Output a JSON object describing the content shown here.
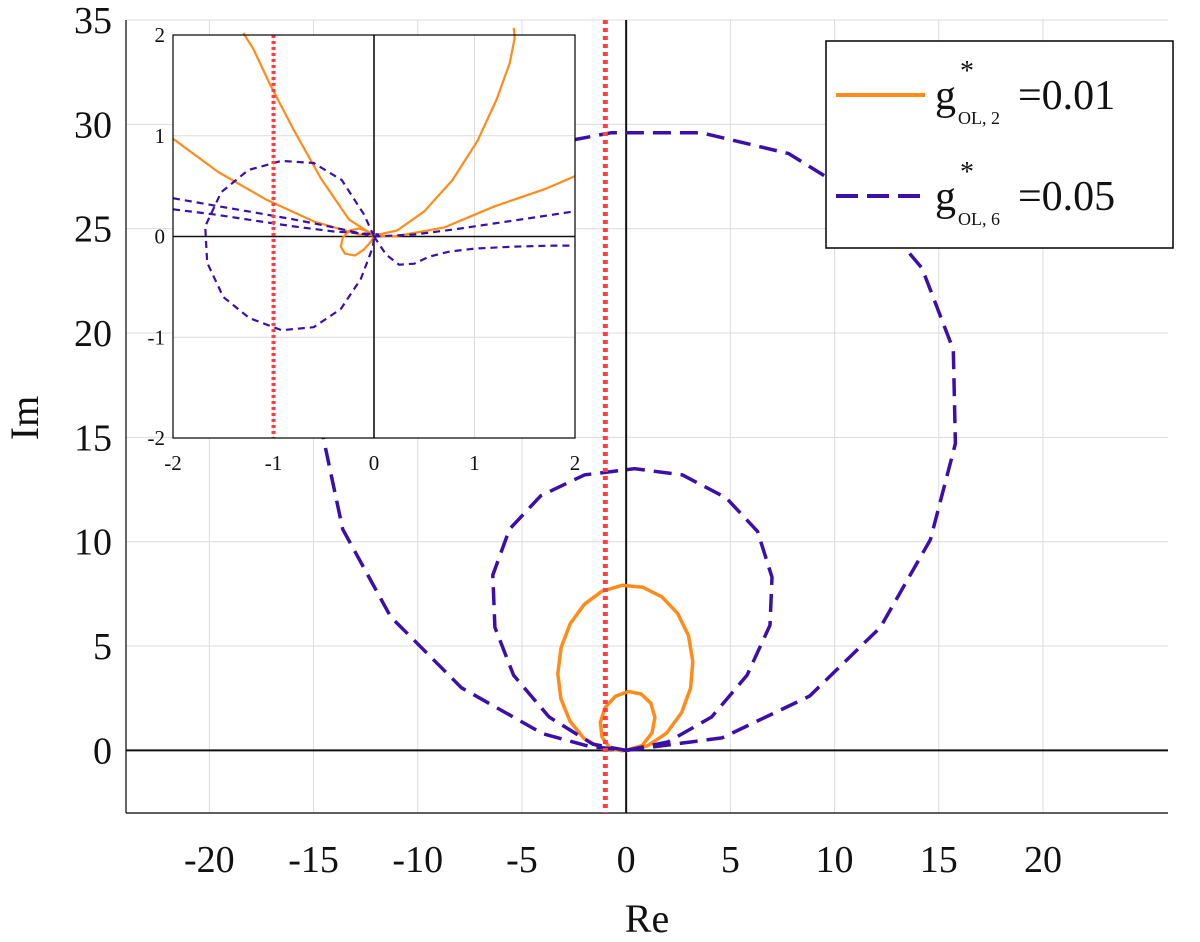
{
  "chart_data": [
    {
      "type": "line",
      "title": "",
      "xlabel": "Re",
      "ylabel": "Im",
      "xlim": [
        -24,
        26
      ],
      "ylim": [
        -3,
        35
      ],
      "xticks": [
        -20,
        -15,
        -10,
        -5,
        0,
        5,
        10,
        15,
        20
      ],
      "yticks": [
        0,
        5,
        10,
        15,
        20,
        25,
        30,
        35
      ],
      "xtick_labels": [
        "-20",
        "-15",
        "-10",
        "-5",
        "0",
        "5",
        "10",
        "15",
        "20"
      ],
      "ytick_labels": [
        "0",
        "5",
        "10",
        "15",
        "20",
        "25",
        "30",
        "35"
      ],
      "grid": true,
      "reference_line": {
        "x": -1,
        "style": "dotted",
        "color": "#ff4040"
      },
      "legend": {
        "position": "top-right",
        "entries": [
          {
            "base": "g",
            "superscript": "*",
            "subscript": "OL, 2",
            "value_text": "=0.01"
          },
          {
            "base": "g",
            "superscript": "*",
            "subscript": "OL, 6",
            "value_text": "=0.05"
          }
        ]
      },
      "series": [
        {
          "style": "solid",
          "color": "#ff8c1a",
          "curves": [
            {
              "x": [
                0,
                1.03,
                1.95,
                2.66,
                3.09,
                3.2,
                2.99,
                2.47,
                1.71,
                0.79,
                -0.19,
                -1.16,
                -2.01,
                -2.69,
                -3.12,
                -3.28,
                -3.13,
                -2.7,
                -2.04,
                -1.19,
                -0.22,
                0
              ],
              "y": [
                0,
                0.22,
                0.84,
                1.81,
                2.99,
                4.26,
                5.5,
                6.57,
                7.36,
                7.82,
                7.91,
                7.63,
                7.0,
                6.06,
                4.93,
                3.68,
                2.47,
                1.41,
                0.59,
                0.1,
                0,
                0
              ]
            },
            {
              "x": [
                0,
                0.77,
                1.24,
                1.38,
                1.18,
                0.72,
                0.11,
                -0.52,
                -1.01,
                -1.24,
                -1.16,
                -0.8,
                -0.22,
                0
              ],
              "y": [
                0,
                0.24,
                0.84,
                1.58,
                2.26,
                2.7,
                2.82,
                2.59,
                2.05,
                1.34,
                0.64,
                0.15,
                -0.02,
                0
              ]
            }
          ]
        },
        {
          "style": "dashed",
          "color": "#3a10a8",
          "curves": [
            {
              "x": [
                0,
                4.6,
                8.8,
                12.2,
                14.6,
                15.8,
                15.7,
                14.2,
                11.5,
                7.8,
                3.6,
                -0.7,
                -5,
                -9,
                -12.2,
                -14.1,
                -14.6,
                -13.6,
                -11.3,
                -7.9,
                -4,
                -1.8,
                0
              ],
              "y": [
                0,
                0.6,
                2.6,
                5.9,
                10.1,
                14.7,
                19.2,
                23.1,
                26.3,
                28.6,
                29.6,
                29.6,
                28.8,
                26.9,
                23.8,
                19.9,
                15.3,
                10.6,
                6.4,
                3.0,
                0.8,
                0.2,
                0
              ]
            },
            {
              "x": [
                0,
                2.0,
                4.1,
                5.8,
                6.9,
                7.0,
                6.3,
                4.8,
                2.7,
                0.4,
                -2.0,
                -4.1,
                -5.6,
                -6.4,
                -6.3,
                -5.4,
                -3.7,
                -1.6,
                0
              ],
              "y": [
                0,
                0.4,
                1.6,
                3.6,
                6.0,
                8.3,
                10.5,
                12.1,
                13.2,
                13.5,
                13.2,
                12.2,
                10.6,
                8.4,
                5.9,
                3.6,
                1.6,
                0.3,
                0
              ]
            }
          ]
        }
      ]
    },
    {
      "type": "line",
      "title": "",
      "xlabel": "",
      "ylabel": "",
      "xlim": [
        -2,
        2
      ],
      "ylim": [
        -2,
        2
      ],
      "xticks": [
        -2,
        -1,
        0,
        1,
        2
      ],
      "yticks": [
        -2,
        -1,
        0,
        1,
        2
      ],
      "xtick_labels": [
        "-2",
        "-1",
        "0",
        "1",
        "2"
      ],
      "ytick_labels": [
        "-2",
        "-1",
        "0",
        "1",
        "2"
      ],
      "grid": true,
      "reference_line": {
        "x": -1,
        "style": "dotted",
        "color": "#ff4040"
      },
      "series": [
        {
          "style": "solid",
          "color": "#ff8c1a",
          "curves": [
            {
              "x": [
                -1.3,
                -1.2,
                -1.03,
                -0.8,
                -0.53,
                -0.25,
                0,
                0.23,
                0.5,
                0.78,
                1.03,
                1.22,
                1.35,
                1.4,
                1.39
              ],
              "y": [
                2.02,
                1.86,
                1.5,
                1.06,
                0.58,
                0.17,
                0.01,
                0.06,
                0.25,
                0.56,
                0.95,
                1.36,
                1.72,
                1.97,
                2.07
              ]
            },
            {
              "x": [
                -2.0,
                -1.55,
                -1.08,
                -0.6,
                -0.15,
                0.2,
                0.7,
                1.2,
                1.7,
                2.0
              ],
              "y": [
                0.97,
                0.64,
                0.37,
                0.15,
                0.02,
                0.0,
                0.09,
                0.3,
                0.47,
                0.6
              ]
            },
            {
              "x": [
                0,
                -0.06,
                -0.15,
                -0.24,
                -0.31,
                -0.33,
                -0.29,
                -0.19,
                -0.1,
                -0.03,
                0
              ],
              "y": [
                0,
                0.05,
                0.08,
                0.06,
                -0.01,
                -0.1,
                -0.17,
                -0.19,
                -0.13,
                -0.05,
                0
              ]
            }
          ]
        },
        {
          "style": "dashed",
          "color": "#3a10a8",
          "curves": [
            {
              "x": [
                0,
                -0.1,
                -0.32,
                -0.6,
                -0.92,
                -1.25,
                -1.52,
                -1.68,
                -1.66,
                -1.5,
                -1.24,
                -0.92,
                -0.6,
                -0.33,
                -0.13,
                -0.01,
                0
              ],
              "y": [
                0,
                0.22,
                0.56,
                0.73,
                0.75,
                0.66,
                0.44,
                0.1,
                -0.26,
                -0.6,
                -0.81,
                -0.93,
                -0.9,
                -0.72,
                -0.42,
                -0.1,
                0
              ]
            },
            {
              "x": [
                -2.0,
                -1.6,
                -1.2,
                -0.8,
                -0.4,
                0,
                0.4,
                0.8,
                1.2,
                1.6,
                2.0
              ],
              "y": [
                0.38,
                0.31,
                0.24,
                0.17,
                0.09,
                0.0,
                0.02,
                0.07,
                0.13,
                0.19,
                0.25
              ]
            },
            {
              "x": [
                -2.0,
                -1.6,
                -1.2,
                -0.8,
                -0.4,
                -0.1,
                0.05
              ],
              "y": [
                0.27,
                0.22,
                0.16,
                0.1,
                0.05,
                0.03,
                0.02
              ]
            },
            {
              "x": [
                0,
                0.12,
                0.25,
                0.4,
                0.55,
                0.75,
                1.0,
                1.4,
                1.8,
                2.0
              ],
              "y": [
                0,
                -0.18,
                -0.28,
                -0.27,
                -0.2,
                -0.15,
                -0.12,
                -0.1,
                -0.09,
                -0.09
              ]
            }
          ]
        }
      ]
    }
  ]
}
